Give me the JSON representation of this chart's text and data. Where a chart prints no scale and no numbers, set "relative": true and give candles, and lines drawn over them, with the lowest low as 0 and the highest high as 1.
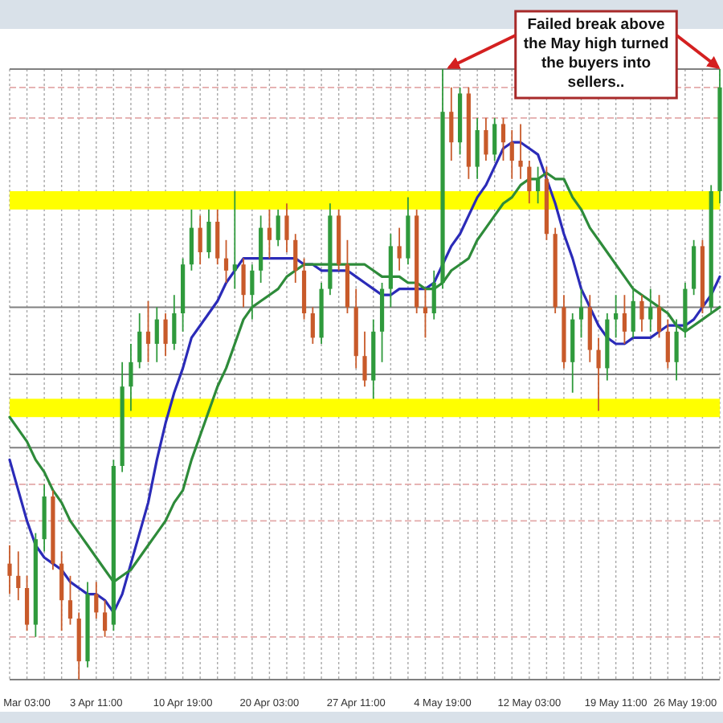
{
  "chart_data": {
    "type": "candlestick",
    "relative": true,
    "grid": "x",
    "categories": [
      null,
      null,
      "Mar 03:00",
      null,
      null,
      null,
      null,
      null,
      null,
      null,
      "3 Apr 11:00",
      null,
      null,
      null,
      null,
      null,
      null,
      null,
      null,
      null,
      "10 Apr 19:00",
      null,
      null,
      null,
      null,
      null,
      null,
      null,
      null,
      null,
      "20 Apr 03:00",
      null,
      null,
      null,
      null,
      null,
      null,
      null,
      null,
      null,
      "27 Apr 11:00",
      null,
      null,
      null,
      null,
      null,
      null,
      null,
      null,
      null,
      "4 May 19:00",
      null,
      null,
      null,
      null,
      null,
      null,
      null,
      null,
      null,
      "12 May 03:00",
      null,
      null,
      null,
      null,
      null,
      null,
      null,
      null,
      null,
      "19 May 11:00",
      null,
      null,
      null,
      null,
      null,
      null,
      null,
      "26 May 19:00",
      null,
      null,
      null,
      null
    ],
    "ohlc": [
      [
        0.19,
        0.22,
        0.14,
        0.17
      ],
      [
        0.17,
        0.21,
        0.13,
        0.15
      ],
      [
        0.15,
        0.17,
        0.08,
        0.09
      ],
      [
        0.09,
        0.24,
        0.07,
        0.23
      ],
      [
        0.23,
        0.32,
        0.21,
        0.3
      ],
      [
        0.3,
        0.31,
        0.18,
        0.19
      ],
      [
        0.19,
        0.21,
        0.08,
        0.13
      ],
      [
        0.13,
        0.17,
        0.09,
        0.1
      ],
      [
        0.1,
        0.11,
        0,
        0.03
      ],
      [
        0.03,
        0.16,
        0.02,
        0.14
      ],
      [
        0.14,
        0.16,
        0.1,
        0.11
      ],
      [
        0.11,
        0.13,
        0.07,
        0.08
      ],
      [
        0.09,
        0.36,
        0.08,
        0.35
      ],
      [
        0.35,
        0.52,
        0.34,
        0.48
      ],
      [
        0.48,
        0.55,
        0.44,
        0.52
      ],
      [
        0.52,
        0.6,
        0.51,
        0.57
      ],
      [
        0.57,
        0.62,
        0.52,
        0.55
      ],
      [
        0.55,
        0.61,
        0.52,
        0.59
      ],
      [
        0.59,
        0.6,
        0.53,
        0.55
      ],
      [
        0.55,
        0.63,
        0.54,
        0.6
      ],
      [
        0.6,
        0.69,
        0.57,
        0.68
      ],
      [
        0.68,
        0.77,
        0.67,
        0.74
      ],
      [
        0.74,
        0.76,
        0.68,
        0.7
      ],
      [
        0.7,
        0.77,
        0.69,
        0.75
      ],
      [
        0.75,
        0.77,
        0.68,
        0.69
      ],
      [
        0.69,
        0.72,
        0.65,
        0.67
      ],
      [
        0.67,
        0.8,
        0.64,
        0.68
      ],
      [
        0.68,
        0.69,
        0.61,
        0.63
      ],
      [
        0.63,
        0.68,
        0.59,
        0.67
      ],
      [
        0.67,
        0.76,
        0.65,
        0.74
      ],
      [
        0.74,
        0.77,
        0.69,
        0.72
      ],
      [
        0.72,
        0.77,
        0.71,
        0.76
      ],
      [
        0.76,
        0.78,
        0.7,
        0.72
      ],
      [
        0.72,
        0.73,
        0.65,
        0.67
      ],
      [
        0.67,
        0.69,
        0.59,
        0.6
      ],
      [
        0.6,
        0.61,
        0.55,
        0.56
      ],
      [
        0.56,
        0.65,
        0.55,
        0.64
      ],
      [
        0.64,
        0.78,
        0.63,
        0.76
      ],
      [
        0.76,
        0.77,
        0.67,
        0.68
      ],
      [
        0.68,
        0.72,
        0.6,
        0.61
      ],
      [
        0.61,
        0.64,
        0.51,
        0.53
      ],
      [
        0.53,
        0.57,
        0.48,
        0.49
      ],
      [
        0.49,
        0.59,
        0.46,
        0.57
      ],
      [
        0.57,
        0.65,
        0.52,
        0.64
      ],
      [
        0.64,
        0.73,
        0.61,
        0.71
      ],
      [
        0.71,
        0.74,
        0.67,
        0.69
      ],
      [
        0.69,
        0.79,
        0.68,
        0.76
      ],
      [
        0.76,
        0.77,
        0.6,
        0.61
      ],
      [
        0.61,
        0.64,
        0.56,
        0.6
      ],
      [
        0.6,
        0.67,
        0.59,
        0.65
      ],
      [
        0.65,
        1,
        0.64,
        0.93
      ],
      [
        0.93,
        0.97,
        0.85,
        0.88
      ],
      [
        0.88,
        0.97,
        0.86,
        0.96
      ],
      [
        0.96,
        0.97,
        0.82,
        0.84
      ],
      [
        0.84,
        0.92,
        0.82,
        0.9
      ],
      [
        0.9,
        0.92,
        0.85,
        0.86
      ],
      [
        0.86,
        0.92,
        0.85,
        0.91
      ],
      [
        0.91,
        0.92,
        0.85,
        0.88
      ],
      [
        0.88,
        0.9,
        0.82,
        0.85
      ],
      [
        0.85,
        0.91,
        0.82,
        0.84
      ],
      [
        0.84,
        0.85,
        0.78,
        0.8
      ],
      [
        0.8,
        0.84,
        0.78,
        0.82
      ],
      [
        0.82,
        0.84,
        0.72,
        0.73
      ],
      [
        0.73,
        0.74,
        0.6,
        0.61
      ],
      [
        0.61,
        0.63,
        0.51,
        0.52
      ],
      [
        0.52,
        0.6,
        0.47,
        0.59
      ],
      [
        0.59,
        0.64,
        0.56,
        0.61
      ],
      [
        0.61,
        0.63,
        0.52,
        0.54
      ],
      [
        0.54,
        0.56,
        0.44,
        0.51
      ],
      [
        0.51,
        0.6,
        0.49,
        0.59
      ],
      [
        0.59,
        0.63,
        0.56,
        0.6
      ],
      [
        0.6,
        0.63,
        0.55,
        0.57
      ],
      [
        0.57,
        0.64,
        0.56,
        0.62
      ],
      [
        0.62,
        0.63,
        0.57,
        0.59
      ],
      [
        0.59,
        0.64,
        0.57,
        0.61
      ],
      [
        0.61,
        0.63,
        0.56,
        0.57
      ],
      [
        0.57,
        0.59,
        0.51,
        0.52
      ],
      [
        0.52,
        0.59,
        0.49,
        0.57
      ],
      [
        0.57,
        0.65,
        0.56,
        0.64
      ],
      [
        0.64,
        0.72,
        0.63,
        0.71
      ],
      [
        0.71,
        0.72,
        0.6,
        0.61
      ],
      [
        0.61,
        0.81,
        0.6,
        0.8
      ],
      [
        0.8,
        1,
        0.78,
        0.97
      ]
    ],
    "colors": [
      "#c85a2a",
      "#c85a2a",
      "#c85a2a",
      "#2f9a3c",
      "#2f9a3c",
      "#c85a2a",
      "#c85a2a",
      "#c85a2a",
      "#c85a2a",
      "#2f9a3c",
      "#c85a2a",
      "#c85a2a",
      "#2f9a3c",
      "#2f9a3c",
      "#2f9a3c",
      "#2f9a3c",
      "#c85a2a",
      "#2f9a3c",
      "#c85a2a",
      "#2f9a3c",
      "#2f9a3c",
      "#2f9a3c",
      "#c85a2a",
      "#2f9a3c",
      "#c85a2a",
      "#c85a2a",
      "#2f9a3c",
      "#c85a2a",
      "#2f9a3c",
      "#2f9a3c",
      "#c85a2a",
      "#2f9a3c",
      "#c85a2a",
      "#c85a2a",
      "#c85a2a",
      "#c85a2a",
      "#2f9a3c",
      "#2f9a3c",
      "#c85a2a",
      "#c85a2a",
      "#c85a2a",
      "#c85a2a",
      "#2f9a3c",
      "#2f9a3c",
      "#2f9a3c",
      "#c85a2a",
      "#2f9a3c",
      "#c85a2a",
      "#c85a2a",
      "#2f9a3c",
      "#2f9a3c",
      "#c85a2a",
      "#2f9a3c",
      "#c85a2a",
      "#2f9a3c",
      "#c85a2a",
      "#2f9a3c",
      "#c85a2a",
      "#c85a2a",
      "#c85a2a",
      "#c85a2a",
      "#2f9a3c",
      "#c85a2a",
      "#c85a2a",
      "#c85a2a",
      "#2f9a3c",
      "#2f9a3c",
      "#c85a2a",
      "#c85a2a",
      "#2f9a3c",
      "#2f9a3c",
      "#c85a2a",
      "#2f9a3c",
      "#c85a2a",
      "#2f9a3c",
      "#c85a2a",
      "#c85a2a",
      "#2f9a3c",
      "#2f9a3c",
      "#2f9a3c",
      "#c85a2a",
      "#2f9a3c",
      "#2f9a3c"
    ],
    "series": [
      {
        "type": "line",
        "color": "#2b2bb8",
        "values": [
          0.36,
          0.31,
          0.26,
          0.22,
          0.2,
          0.19,
          0.18,
          0.16,
          0.15,
          0.14,
          0.14,
          0.13,
          0.11,
          0.14,
          0.19,
          0.24,
          0.29,
          0.36,
          0.42,
          0.47,
          0.51,
          0.56,
          0.58,
          0.6,
          0.62,
          0.65,
          0.67,
          0.69,
          0.69,
          0.69,
          0.69,
          0.69,
          0.69,
          0.69,
          0.68,
          0.68,
          0.67,
          0.67,
          0.67,
          0.67,
          0.66,
          0.65,
          0.64,
          0.63,
          0.63,
          0.64,
          0.64,
          0.64,
          0.64,
          0.65,
          0.68,
          0.71,
          0.73,
          0.76,
          0.79,
          0.81,
          0.84,
          0.87,
          0.88,
          0.88,
          0.87,
          0.86,
          0.82,
          0.78,
          0.73,
          0.69,
          0.64,
          0.61,
          0.58,
          0.56,
          0.55,
          0.55,
          0.56,
          0.56,
          0.56,
          0.57,
          0.58,
          0.58,
          0.58,
          0.59,
          0.61,
          0.63,
          0.66
        ]
      },
      {
        "type": "line",
        "color": "#2e8b3a",
        "values": [
          0.43,
          0.41,
          0.39,
          0.36,
          0.34,
          0.31,
          0.29,
          0.26,
          0.24,
          0.22,
          0.2,
          0.18,
          0.16,
          0.17,
          0.18,
          0.2,
          0.22,
          0.24,
          0.26,
          0.29,
          0.31,
          0.36,
          0.4,
          0.44,
          0.48,
          0.51,
          0.55,
          0.59,
          0.61,
          0.62,
          0.63,
          0.64,
          0.66,
          0.67,
          0.68,
          0.68,
          0.68,
          0.68,
          0.68,
          0.68,
          0.68,
          0.68,
          0.67,
          0.66,
          0.66,
          0.66,
          0.65,
          0.65,
          0.64,
          0.64,
          0.65,
          0.67,
          0.68,
          0.69,
          0.72,
          0.74,
          0.76,
          0.78,
          0.79,
          0.81,
          0.82,
          0.82,
          0.83,
          0.82,
          0.82,
          0.79,
          0.77,
          0.74,
          0.72,
          0.7,
          0.68,
          0.66,
          0.64,
          0.63,
          0.62,
          0.61,
          0.6,
          0.58,
          0.57,
          0.58,
          0.59,
          0.6,
          0.61
        ]
      }
    ],
    "bands": [
      {
        "axis": "y",
        "from": 0.77,
        "to": 0.8,
        "color": "#ffff00"
      },
      {
        "axis": "y",
        "from": 0.43,
        "to": 0.46,
        "color": "#ffff00"
      }
    ],
    "ref_lines": [
      {
        "axis": "y",
        "value": 1,
        "color": "#808080"
      },
      {
        "axis": "y",
        "value": 0.61,
        "color": "#808080"
      },
      {
        "axis": "y",
        "value": 0.5,
        "color": "#808080"
      },
      {
        "axis": "y",
        "value": 0.38,
        "color": "#808080"
      },
      {
        "axis": "y",
        "value": 0,
        "color": "#808080"
      },
      {
        "axis": "y",
        "value": 0.97,
        "color": "#e3a9a9",
        "line_style": "dashed"
      },
      {
        "axis": "y",
        "value": 0.92,
        "color": "#e3a9a9",
        "line_style": "dashed"
      },
      {
        "axis": "y",
        "value": 0.32,
        "color": "#e3a9a9",
        "line_style": "dashed"
      },
      {
        "axis": "y",
        "value": 0.26,
        "color": "#e3a9a9",
        "line_style": "dashed"
      },
      {
        "axis": "y",
        "value": 0.07,
        "color": "#e3a9a9",
        "line_style": "dashed"
      }
    ],
    "annotations": [
      {
        "text": "Failed break above the May high turned the buyers into sellers..",
        "y": 1
      }
    ]
  }
}
